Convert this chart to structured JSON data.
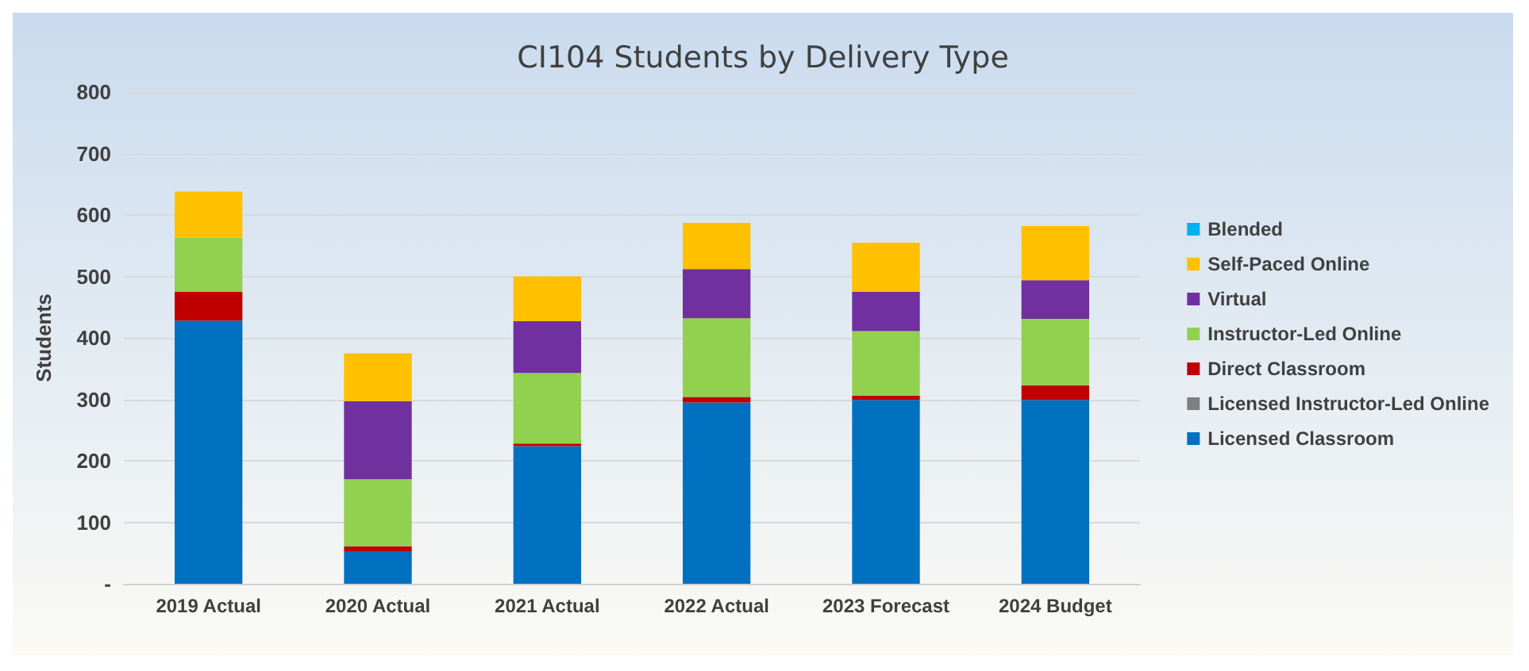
{
  "chart_data": {
    "type": "bar",
    "title": "CI104 Students by Delivery Type",
    "ylabel": "Students",
    "stacked": true,
    "categories": [
      "2019 Actual",
      "2020 Actual",
      "2021 Actual",
      "2022 Actual",
      "2023 Forecast",
      "2024 Budget"
    ],
    "series": [
      {
        "name": "Licensed Classroom",
        "color": "#0070c0",
        "values": [
          428,
          53,
          224,
          295,
          299,
          299
        ]
      },
      {
        "name": "Licensed Instructor-Led Online",
        "color": "#7f7f7f",
        "values": [
          0,
          0,
          0,
          0,
          0,
          0
        ]
      },
      {
        "name": "Direct Classroom",
        "color": "#c00000",
        "values": [
          47,
          8,
          4,
          9,
          7,
          24
        ]
      },
      {
        "name": "Instructor-Led Online",
        "color": "#92d050",
        "values": [
          88,
          109,
          115,
          128,
          105,
          108
        ]
      },
      {
        "name": "Virtual",
        "color": "#7030a0",
        "values": [
          0,
          127,
          84,
          80,
          64,
          63
        ]
      },
      {
        "name": "Self-Paced Online",
        "color": "#ffc000",
        "values": [
          75,
          78,
          73,
          75,
          80,
          88
        ]
      },
      {
        "name": "Blended",
        "color": "#00b0f0",
        "values": [
          0,
          0,
          0,
          0,
          0,
          0
        ]
      }
    ],
    "ylim": [
      0,
      800
    ],
    "yticks": [
      {
        "value": 0,
        "label": "-"
      },
      100,
      200,
      300,
      400,
      500,
      600,
      700,
      800
    ],
    "grid": "y",
    "legend": "right"
  }
}
